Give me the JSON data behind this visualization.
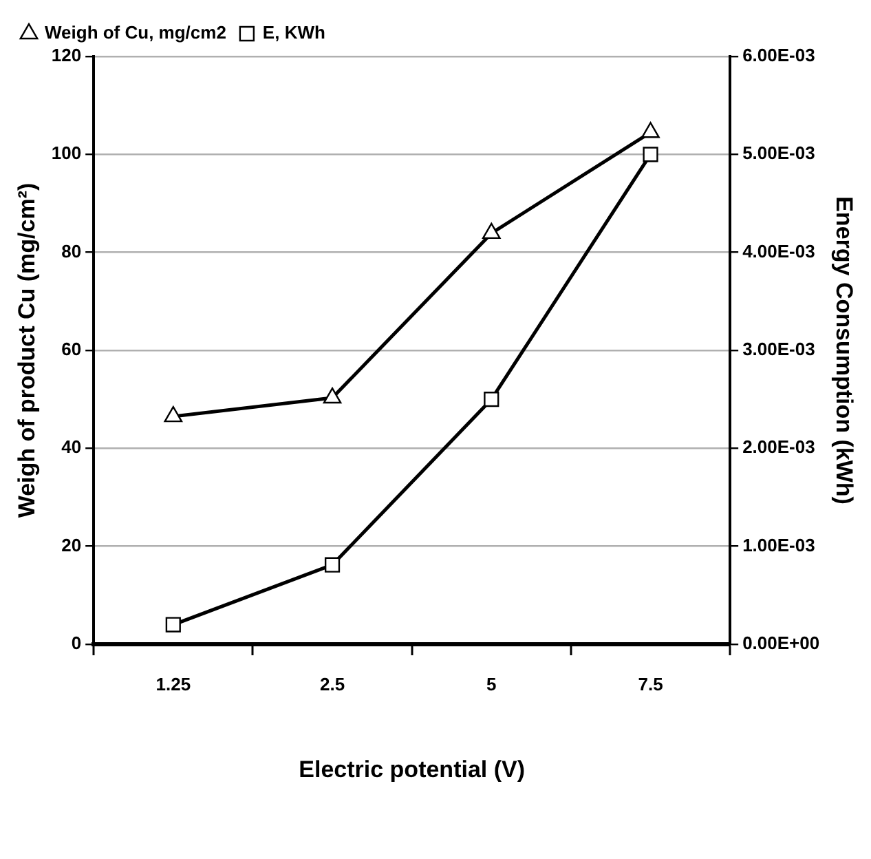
{
  "chart_data": {
    "type": "line",
    "xlabel": "Electric potential (V)",
    "ylabel": "Weigh of product Cu (mg/cm²)",
    "y2label": "Energy Consumption (kWh)",
    "categories": [
      "1.25",
      "2.5",
      "5",
      "7.5"
    ],
    "series": [
      {
        "name": "Weigh of Cu, mg/cm2",
        "color": "#000000",
        "marker": "triangle",
        "values": [
          46.5,
          50.3,
          83.9,
          104.5
        ]
      },
      {
        "name": "E, KWh",
        "color": "#000000",
        "marker": "square",
        "axis": "y2",
        "values": [
          0.0002,
          0.00081,
          0.0025,
          0.005
        ]
      }
    ],
    "ylim": [
      0,
      120
    ],
    "yticks": [
      0,
      20,
      40,
      60,
      80,
      100,
      120
    ],
    "y2lim": [
      0,
      0.006
    ],
    "y2ticks": [
      {
        "value": 0,
        "label": "0.00E+00"
      },
      {
        "value": 0.001,
        "label": "1.00E-03"
      },
      {
        "value": 0.002,
        "label": "2.00E-03"
      },
      {
        "value": 0.003,
        "label": "3.00E-03"
      },
      {
        "value": 0.004,
        "label": "4.00E-03"
      },
      {
        "value": 0.005,
        "label": "5.00E-03"
      },
      {
        "value": 0.006,
        "label": "6.00E-03"
      }
    ],
    "grid": "y",
    "legend": "top left",
    "line_style": "solid"
  }
}
